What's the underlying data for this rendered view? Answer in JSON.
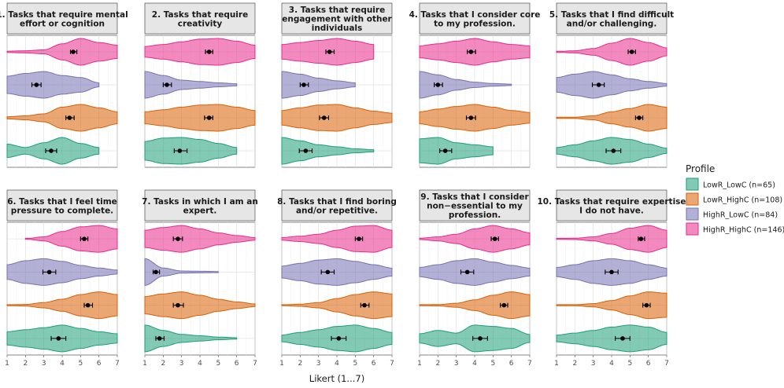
{
  "chart_data": {
    "type": "violin",
    "xlabel": "Likert (1...7)",
    "x_ticks": [
      "1",
      "2",
      "3",
      "4",
      "5",
      "6",
      "7"
    ],
    "xlim": [
      1,
      7
    ],
    "legend": {
      "title": "Profile",
      "position": "right",
      "entries": [
        {
          "key": "LowR_LowC",
          "label": "LowR_LowC (n=65)",
          "color": "#1b9e77"
        },
        {
          "key": "LowR_HighC",
          "label": "LowR_HighC (n=108)",
          "color": "#d95f02"
        },
        {
          "key": "HighR_LowC",
          "label": "HighR_LowC (n=84)",
          "color": "#7570b3"
        },
        {
          "key": "HighR_HighC",
          "label": "HighR_HighC (n=146)",
          "color": "#e7298a"
        }
      ]
    },
    "series_order_top_to_bottom": [
      "HighR_HighC",
      "HighR_LowC",
      "LowR_HighC",
      "LowR_LowC"
    ],
    "panels": [
      {
        "title_lines": [
          "1. Tasks that require mental",
          "effort or cognition"
        ],
        "violins": {
          "HighR_HighC": {
            "mean": 4.6,
            "ci": [
              4.45,
              4.8
            ],
            "range": [
              1,
              7
            ],
            "density": [
              0.05,
              0.08,
              0.15,
              0.6,
              1.0,
              0.7,
              0.5
            ]
          },
          "HighR_LowC": {
            "mean": 2.6,
            "ci": [
              2.35,
              2.85
            ],
            "range": [
              1,
              6
            ],
            "density": [
              0.65,
              0.85,
              1.0,
              0.7,
              0.55,
              0.15,
              0
            ]
          },
          "LowR_HighC": {
            "mean": 4.4,
            "ci": [
              4.2,
              4.65
            ],
            "range": [
              1,
              7
            ],
            "density": [
              0.08,
              0.15,
              0.3,
              0.8,
              1.0,
              0.75,
              0.45
            ]
          },
          "LowR_LowC": {
            "mean": 3.4,
            "ci": [
              3.1,
              3.7
            ],
            "range": [
              1,
              6
            ],
            "density": [
              0.5,
              0.25,
              0.6,
              1.0,
              0.55,
              0.25,
              0
            ]
          }
        }
      },
      {
        "title_lines": [
          "2. Tasks that require",
          "creativity"
        ],
        "violins": {
          "HighR_HighC": {
            "mean": 4.5,
            "ci": [
              4.3,
              4.7
            ],
            "range": [
              1,
              7
            ],
            "density": [
              0.4,
              0.55,
              0.75,
              0.95,
              1.0,
              0.8,
              0.5
            ]
          },
          "HighR_LowC": {
            "mean": 2.2,
            "ci": [
              2.0,
              2.45
            ],
            "range": [
              1,
              6
            ],
            "density": [
              1.0,
              0.7,
              0.35,
              0.25,
              0.15,
              0.08,
              0
            ]
          },
          "LowR_HighC": {
            "mean": 4.5,
            "ci": [
              4.25,
              4.7
            ],
            "range": [
              1,
              7
            ],
            "density": [
              0.45,
              0.6,
              0.8,
              0.95,
              1.0,
              0.8,
              0.55
            ]
          },
          "LowR_LowC": {
            "mean": 2.9,
            "ci": [
              2.6,
              3.3
            ],
            "range": [
              1,
              6
            ],
            "density": [
              0.7,
              0.95,
              1.0,
              0.85,
              0.55,
              0.25,
              0
            ]
          }
        }
      },
      {
        "title_lines": [
          "3. Tasks that require",
          "engagement with other",
          "individuals"
        ],
        "violins": {
          "HighR_HighC": {
            "mean": 3.6,
            "ci": [
              3.4,
              3.85
            ],
            "range": [
              1,
              6
            ],
            "density": [
              0.55,
              0.7,
              0.85,
              1.0,
              0.8,
              0.55,
              0
            ]
          },
          "HighR_LowC": {
            "mean": 2.2,
            "ci": [
              2.0,
              2.45
            ],
            "range": [
              1,
              5
            ],
            "density": [
              1.0,
              0.8,
              0.5,
              0.3,
              0.15,
              0,
              0
            ]
          },
          "LowR_HighC": {
            "mean": 3.3,
            "ci": [
              3.05,
              3.55
            ],
            "range": [
              1,
              7
            ],
            "density": [
              0.55,
              0.75,
              0.95,
              1.0,
              0.75,
              0.5,
              0.35
            ]
          },
          "LowR_LowC": {
            "mean": 2.3,
            "ci": [
              1.95,
              2.65
            ],
            "range": [
              1,
              6
            ],
            "density": [
              1.0,
              0.75,
              0.45,
              0.3,
              0.15,
              0.08,
              0
            ]
          }
        }
      },
      {
        "title_lines": [
          "4. Tasks that I consider core",
          "to my profession."
        ],
        "violins": {
          "HighR_HighC": {
            "mean": 3.8,
            "ci": [
              3.6,
              4.05
            ],
            "range": [
              1,
              7
            ],
            "density": [
              0.45,
              0.6,
              0.8,
              1.0,
              0.75,
              0.55,
              0.45
            ]
          },
          "HighR_LowC": {
            "mean": 2.0,
            "ci": [
              1.8,
              2.25
            ],
            "range": [
              1,
              6
            ],
            "density": [
              1.0,
              0.75,
              0.4,
              0.2,
              0.1,
              0.05,
              0
            ]
          },
          "LowR_HighC": {
            "mean": 3.8,
            "ci": [
              3.55,
              4.05
            ],
            "range": [
              1,
              7
            ],
            "density": [
              0.45,
              0.65,
              0.85,
              1.0,
              0.8,
              0.55,
              0.4
            ]
          },
          "LowR_LowC": {
            "mean": 2.4,
            "ci": [
              2.1,
              2.75
            ],
            "range": [
              1,
              5
            ],
            "density": [
              0.9,
              1.0,
              0.6,
              0.45,
              0.3,
              0,
              0
            ]
          }
        }
      },
      {
        "title_lines": [
          "5. Tasks that I find difficult",
          "and/or challenging."
        ],
        "violins": {
          "HighR_HighC": {
            "mean": 5.1,
            "ci": [
              4.9,
              5.3
            ],
            "range": [
              1,
              7
            ],
            "density": [
              0.03,
              0.08,
              0.25,
              0.65,
              1.0,
              0.7,
              0.3
            ]
          },
          "HighR_LowC": {
            "mean": 3.3,
            "ci": [
              2.95,
              3.6
            ],
            "range": [
              1,
              7
            ],
            "density": [
              0.55,
              0.8,
              1.0,
              0.75,
              0.45,
              0.25,
              0.1
            ]
          },
          "LowR_HighC": {
            "mean": 5.5,
            "ci": [
              5.3,
              5.7
            ],
            "range": [
              1,
              7
            ],
            "density": [
              0.03,
              0.05,
              0.15,
              0.45,
              0.7,
              1.0,
              0.8
            ]
          },
          "LowR_LowC": {
            "mean": 4.1,
            "ci": [
              3.7,
              4.5
            ],
            "range": [
              1,
              7
            ],
            "density": [
              0.25,
              0.45,
              0.75,
              1.0,
              0.85,
              0.5,
              0.2
            ]
          }
        }
      },
      {
        "title_lines": [
          "6. Tasks that I feel time",
          "pressure to complete."
        ],
        "violins": {
          "HighR_HighC": {
            "mean": 5.2,
            "ci": [
              5.0,
              5.4
            ],
            "range": [
              2,
              7
            ],
            "density": [
              0,
              0.02,
              0.15,
              0.55,
              0.9,
              1.0,
              0.75
            ]
          },
          "HighR_LowC": {
            "mean": 3.3,
            "ci": [
              2.95,
              3.65
            ],
            "range": [
              1,
              7
            ],
            "density": [
              0.55,
              0.85,
              1.0,
              0.8,
              0.5,
              0.3,
              0.15
            ]
          },
          "LowR_HighC": {
            "mean": 5.4,
            "ci": [
              5.2,
              5.65
            ],
            "range": [
              1,
              7
            ],
            "density": [
              0.02,
              0.06,
              0.2,
              0.45,
              0.8,
              1.0,
              0.8
            ]
          },
          "LowR_LowC": {
            "mean": 3.8,
            "ci": [
              3.4,
              4.2
            ],
            "range": [
              1,
              7
            ],
            "density": [
              0.5,
              0.65,
              0.8,
              1.0,
              0.75,
              0.5,
              0.35
            ]
          }
        }
      },
      {
        "title_lines": [
          "7. Tasks in which I am an",
          "expert."
        ],
        "violins": {
          "HighR_HighC": {
            "mean": 2.8,
            "ci": [
              2.55,
              3.05
            ],
            "range": [
              1,
              7
            ],
            "density": [
              0.65,
              0.85,
              1.0,
              0.75,
              0.45,
              0.25,
              0.1
            ]
          },
          "HighR_LowC": {
            "mean": 1.6,
            "ci": [
              1.45,
              1.8
            ],
            "range": [
              1,
              5
            ],
            "density": [
              1.0,
              0.3,
              0.08,
              0.06,
              0.04,
              0,
              0
            ]
          },
          "LowR_HighC": {
            "mean": 2.8,
            "ci": [
              2.55,
              3.1
            ],
            "range": [
              1,
              7
            ],
            "density": [
              0.65,
              0.85,
              1.0,
              0.75,
              0.45,
              0.25,
              0.1
            ]
          },
          "LowR_LowC": {
            "mean": 1.8,
            "ci": [
              1.6,
              2.05
            ],
            "range": [
              1,
              6
            ],
            "density": [
              1.0,
              0.6,
              0.3,
              0.2,
              0.1,
              0.05,
              0
            ]
          }
        }
      },
      {
        "title_lines": [
          "8. Tasks that I find boring",
          "and/or repetitive."
        ],
        "violins": {
          "HighR_HighC": {
            "mean": 5.2,
            "ci": [
              5.0,
              5.4
            ],
            "range": [
              1,
              7
            ],
            "density": [
              0.1,
              0.2,
              0.35,
              0.65,
              0.95,
              1.0,
              0.65
            ]
          },
          "HighR_LowC": {
            "mean": 3.5,
            "ci": [
              3.15,
              3.85
            ],
            "range": [
              1,
              7
            ],
            "density": [
              0.45,
              0.65,
              0.9,
              1.0,
              0.8,
              0.55,
              0.3
            ]
          },
          "LowR_HighC": {
            "mean": 5.5,
            "ci": [
              5.3,
              5.75
            ],
            "range": [
              1,
              7
            ],
            "density": [
              0.03,
              0.08,
              0.2,
              0.5,
              0.8,
              1.0,
              0.85
            ]
          },
          "LowR_LowC": {
            "mean": 4.1,
            "ci": [
              3.7,
              4.5
            ],
            "range": [
              1,
              7
            ],
            "density": [
              0.25,
              0.45,
              0.65,
              0.9,
              1.0,
              0.75,
              0.45
            ]
          }
        }
      },
      {
        "title_lines": [
          "9. Tasks that I consider",
          "non−essential to my",
          "profession."
        ],
        "violins": {
          "HighR_HighC": {
            "mean": 5.1,
            "ci": [
              4.9,
              5.3
            ],
            "range": [
              1,
              7
            ],
            "density": [
              0.05,
              0.15,
              0.35,
              0.75,
              1.0,
              0.75,
              0.45
            ]
          },
          "HighR_LowC": {
            "mean": 3.6,
            "ci": [
              3.25,
              3.95
            ],
            "range": [
              1,
              7
            ],
            "density": [
              0.35,
              0.55,
              0.85,
              1.0,
              0.75,
              0.5,
              0.3
            ]
          },
          "LowR_HighC": {
            "mean": 5.6,
            "ci": [
              5.4,
              5.8
            ],
            "range": [
              1,
              7
            ],
            "density": [
              0.03,
              0.05,
              0.15,
              0.4,
              0.75,
              1.0,
              0.8
            ]
          },
          "LowR_LowC": {
            "mean": 4.3,
            "ci": [
              3.9,
              4.7
            ],
            "range": [
              1,
              7
            ],
            "density": [
              0.35,
              0.6,
              0.4,
              1.0,
              0.9,
              0.75,
              0.3
            ]
          }
        }
      },
      {
        "title_lines": [
          "10. Tasks that require expertise",
          "I do not have."
        ],
        "violins": {
          "HighR_HighC": {
            "mean": 5.6,
            "ci": [
              5.45,
              5.8
            ],
            "range": [
              1,
              7
            ],
            "density": [
              0.03,
              0.05,
              0.15,
              0.4,
              0.8,
              1.0,
              0.65
            ]
          },
          "HighR_LowC": {
            "mean": 4.0,
            "ci": [
              3.65,
              4.35
            ],
            "range": [
              1,
              7
            ],
            "density": [
              0.35,
              0.55,
              0.85,
              1.0,
              0.85,
              0.55,
              0.3
            ]
          },
          "LowR_HighC": {
            "mean": 5.9,
            "ci": [
              5.7,
              6.1
            ],
            "range": [
              1,
              7
            ],
            "density": [
              0.02,
              0.04,
              0.12,
              0.35,
              0.7,
              1.0,
              0.9
            ]
          },
          "LowR_LowC": {
            "mean": 4.6,
            "ci": [
              4.2,
              5.0
            ],
            "range": [
              1,
              7
            ],
            "density": [
              0.25,
              0.4,
              0.6,
              0.85,
              1.0,
              0.85,
              0.45
            ]
          }
        }
      }
    ]
  }
}
